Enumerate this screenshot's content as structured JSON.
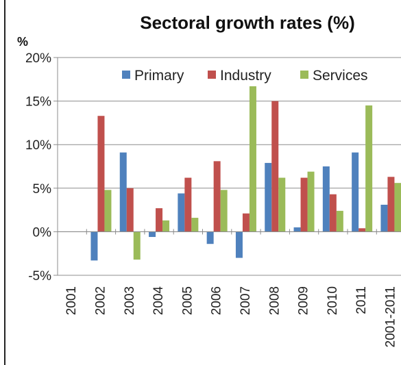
{
  "chart_data": {
    "type": "bar",
    "title": "Sectoral growth rates (%)",
    "ylabel": "%",
    "xlabel": "",
    "ylim": [
      -5,
      20
    ],
    "yticks": [
      "-5%",
      "0%",
      "5%",
      "10%",
      "15%",
      "20%"
    ],
    "ytick_values": [
      -5,
      0,
      5,
      10,
      15,
      20
    ],
    "grid": true,
    "legend_position": "top-right",
    "categories": [
      "2001",
      "2002",
      "2003",
      "2004",
      "2005",
      "2006",
      "2007",
      "2008",
      "2009",
      "2010",
      "2011",
      "2001-2011"
    ],
    "series": [
      {
        "name": "Primary",
        "color": "#4f81bd",
        "values": [
          null,
          -3.3,
          9.1,
          -0.6,
          4.4,
          -1.4,
          -3.0,
          7.9,
          0.5,
          7.5,
          9.1,
          3.1
        ]
      },
      {
        "name": "Industry",
        "color": "#c0504d",
        "values": [
          null,
          13.3,
          5.0,
          2.7,
          6.2,
          8.1,
          2.1,
          15.0,
          6.2,
          4.3,
          0.4,
          6.3
        ]
      },
      {
        "name": "Services",
        "color": "#9bbb59",
        "values": [
          null,
          4.8,
          -3.2,
          1.3,
          1.6,
          4.8,
          16.7,
          6.2,
          6.9,
          2.4,
          14.5,
          5.6
        ]
      }
    ]
  }
}
